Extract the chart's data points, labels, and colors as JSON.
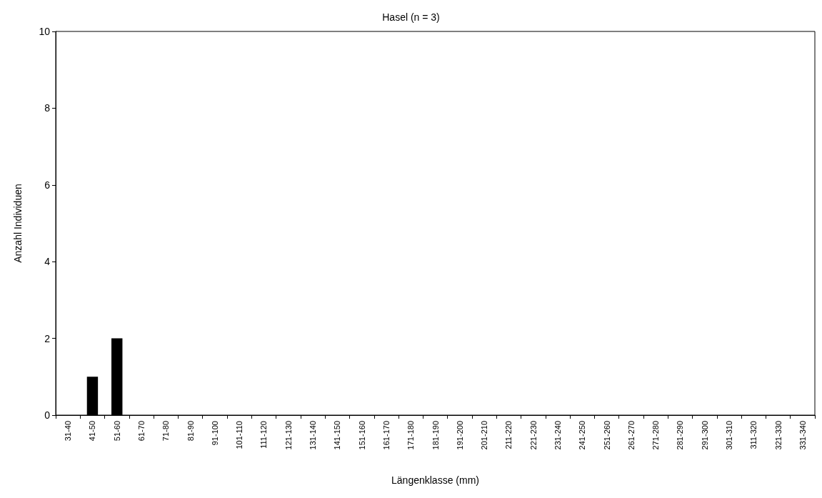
{
  "chart_data": {
    "type": "bar",
    "title": "Hasel (n = 3)",
    "xlabel": "Längenklasse (mm)",
    "ylabel": "Anzahl Individuen",
    "categories": [
      "31-40",
      "41-50",
      "51-60",
      "61-70",
      "71-80",
      "81-90",
      "91-100",
      "101-110",
      "111-120",
      "121-130",
      "131-140",
      "141-150",
      "151-160",
      "161-170",
      "171-180",
      "181-190",
      "191-200",
      "201-210",
      "211-220",
      "221-230",
      "231-240",
      "241-250",
      "251-260",
      "261-270",
      "271-280",
      "281-290",
      "291-300",
      "301-310",
      "311-320",
      "321-330",
      "331-340"
    ],
    "values": [
      0,
      1,
      2,
      0,
      0,
      0,
      0,
      0,
      0,
      0,
      0,
      0,
      0,
      0,
      0,
      0,
      0,
      0,
      0,
      0,
      0,
      0,
      0,
      0,
      0,
      0,
      0,
      0,
      0,
      0,
      0
    ],
    "color": "#000000",
    "ylim": [
      0,
      10
    ],
    "yticks": [
      0,
      2,
      4,
      6,
      8,
      10
    ],
    "grid": false
  }
}
